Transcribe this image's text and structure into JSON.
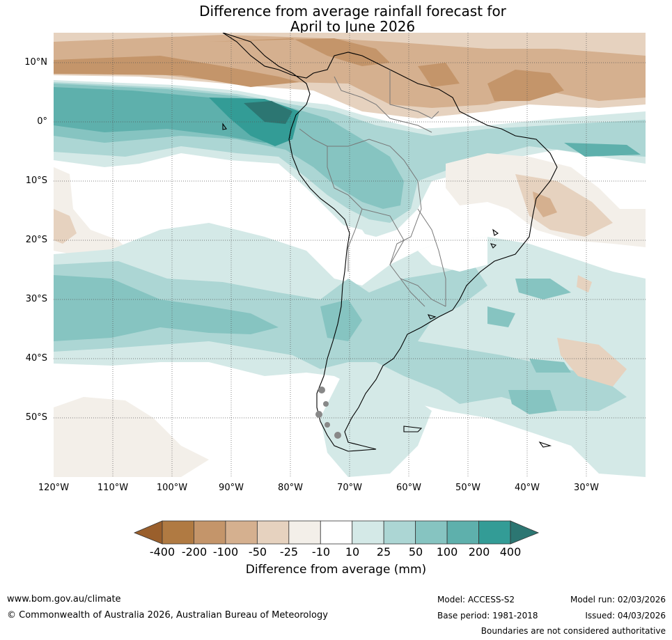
{
  "title": {
    "line1": "Difference from average rainfall forecast for",
    "line2": "April to June 2026"
  },
  "map": {
    "region": "South America",
    "lat_labels": [
      "10°N",
      "0°",
      "10°S",
      "20°S",
      "30°S",
      "40°S",
      "50°S"
    ],
    "lon_labels": [
      "120°W",
      "110°W",
      "100°W",
      "90°W",
      "80°W",
      "70°W",
      "60°W",
      "50°W",
      "40°W",
      "30°W"
    ]
  },
  "legend": {
    "title": "Difference from average (mm)",
    "ticks": [
      "-400",
      "-200",
      "-100",
      "-50",
      "-25",
      "-10",
      "10",
      "25",
      "50",
      "100",
      "200",
      "400"
    ],
    "colors": {
      "below_-400": "#9a5f2c",
      "-400_-200": "#b07a42",
      "-200_-100": "#c4956a",
      "-100_-50": "#d5b08f",
      "-50_-25": "#e6d2bf",
      "-25_-10": "#f3efe9",
      "-10_10": "#ffffff",
      "10_25": "#d4e9e7",
      "25_50": "#acd6d4",
      "50_100": "#86c4c1",
      "100_200": "#5eb0ac",
      "200_400": "#339c96",
      "above_400": "#2c7672"
    }
  },
  "footer": {
    "url": "www.bom.gov.au/climate",
    "copyright": "© Commonwealth of Australia 2026, Australian Bureau of Meteorology",
    "model": "Model: ACCESS-S2",
    "base_period": "Base period: 1981-2018",
    "model_run": "Model run: 02/03/2026",
    "issued": "Issued: 04/03/2026",
    "disclaimer": "Boundaries are not considered authoritative"
  }
}
